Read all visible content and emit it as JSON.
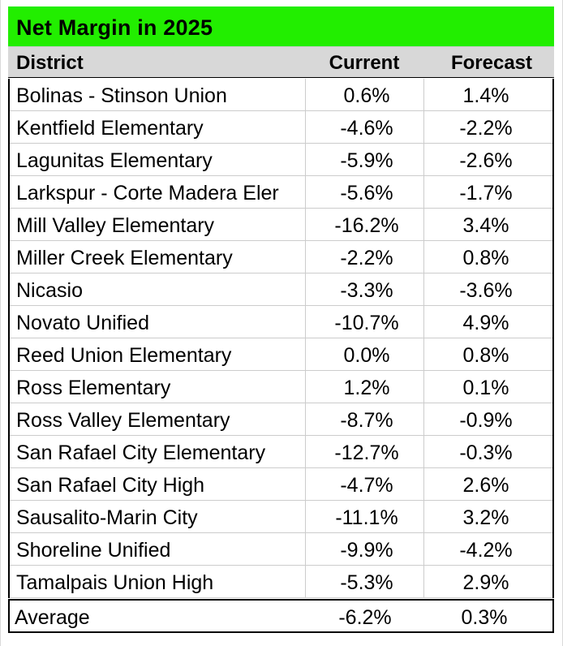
{
  "title": "Net Margin in 2025",
  "colors": {
    "title_fill": "#22ee00",
    "header_fill": "#d8d8d8"
  },
  "headers": {
    "district": "District",
    "current": "Current",
    "forecast": "Forecast"
  },
  "rows": [
    {
      "district": "Bolinas - Stinson Union",
      "current": "0.6%",
      "forecast": "1.4%"
    },
    {
      "district": "Kentfield Elementary",
      "current": "-4.6%",
      "forecast": "-2.2%"
    },
    {
      "district": "Lagunitas Elementary",
      "current": "-5.9%",
      "forecast": "-2.6%"
    },
    {
      "district": "Larkspur - Corte Madera Eler",
      "current": "-5.6%",
      "forecast": "-1.7%"
    },
    {
      "district": "Mill Valley Elementary",
      "current": "-16.2%",
      "forecast": "3.4%"
    },
    {
      "district": "Miller Creek Elementary",
      "current": "-2.2%",
      "forecast": "0.8%"
    },
    {
      "district": "Nicasio",
      "current": "-3.3%",
      "forecast": "-3.6%"
    },
    {
      "district": "Novato Unified",
      "current": "-10.7%",
      "forecast": "4.9%"
    },
    {
      "district": "Reed Union Elementary",
      "current": "0.0%",
      "forecast": "0.8%"
    },
    {
      "district": "Ross Elementary",
      "current": "1.2%",
      "forecast": "0.1%"
    },
    {
      "district": "Ross Valley Elementary",
      "current": "-8.7%",
      "forecast": "-0.9%"
    },
    {
      "district": "San Rafael City Elementary",
      "current": "-12.7%",
      "forecast": "-0.3%"
    },
    {
      "district": "San Rafael City High",
      "current": "-4.7%",
      "forecast": "2.6%"
    },
    {
      "district": "Sausalito-Marin City",
      "current": "-11.1%",
      "forecast": "3.2%"
    },
    {
      "district": "Shoreline Unified",
      "current": "-9.9%",
      "forecast": "-4.2%"
    },
    {
      "district": "Tamalpais Union High",
      "current": "-5.3%",
      "forecast": "2.9%"
    }
  ],
  "average": {
    "district": "Average",
    "current": "-6.2%",
    "forecast": "0.3%"
  }
}
